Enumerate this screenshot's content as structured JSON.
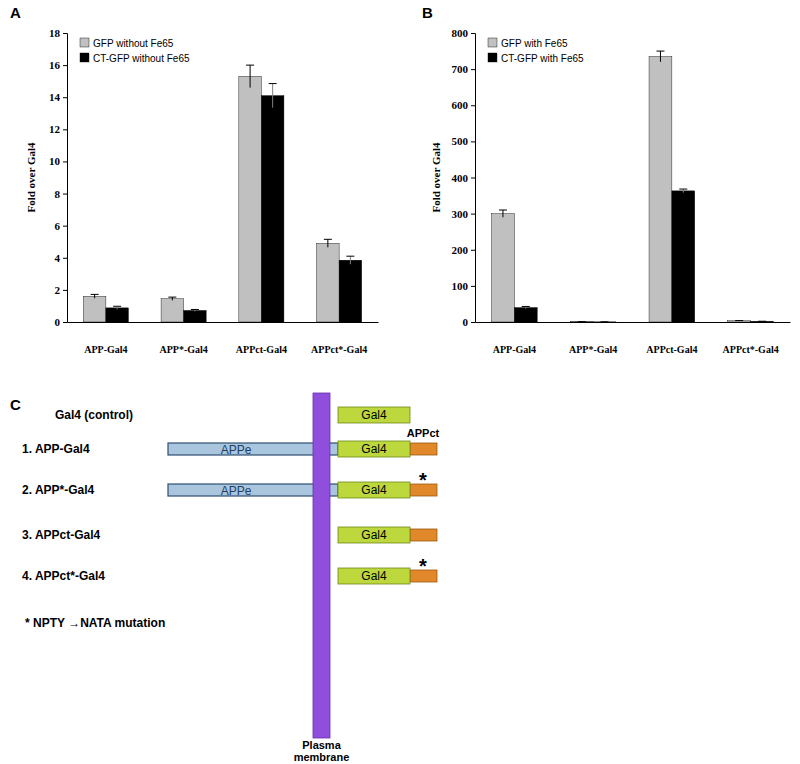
{
  "chart_data": [
    {
      "type": "bar",
      "title": "A",
      "categories": [
        "APP-Gal4",
        "APP*-Gal4",
        "APPct-Gal4",
        "APPct*-Gal4"
      ],
      "series": [
        {
          "name": "GFP without Fe65",
          "color": "#c0c0c0",
          "values": [
            1.6,
            1.45,
            15.3,
            4.9
          ],
          "errors": [
            0.12,
            0.1,
            0.7,
            0.25
          ]
        },
        {
          "name": "CT-GFP without Fe65",
          "color": "#000000",
          "values": [
            0.88,
            0.72,
            14.1,
            3.85
          ],
          "errors": [
            0.1,
            0.06,
            0.75,
            0.25
          ]
        }
      ],
      "y_label": "Fold over Gal4",
      "ylim": [
        0,
        18
      ],
      "yticks": [
        0,
        2,
        4,
        6,
        8,
        10,
        12,
        14,
        16,
        18
      ],
      "grid": false,
      "legend": "top-left"
    },
    {
      "type": "bar",
      "title": "B",
      "categories": [
        "APP-Gal4",
        "APP*-Gal4",
        "APPct-Gal4",
        "APPct*-Gal4"
      ],
      "series": [
        {
          "name": "GFP with Fe65",
          "color": "#c0c0c0",
          "values": [
            300,
            0.8,
            735,
            3.5
          ],
          "errors": [
            10,
            0.3,
            15,
            0.5
          ]
        },
        {
          "name": "CT-GFP with Fe65",
          "color": "#000000",
          "values": [
            40,
            0.4,
            363,
            1.8
          ],
          "errors": [
            3,
            0.2,
            5,
            0.3
          ]
        }
      ],
      "y_label": "Fold over Gal4",
      "ylim": [
        0,
        800
      ],
      "yticks": [
        0,
        100,
        200,
        300,
        400,
        500,
        600,
        700,
        800
      ],
      "grid": false,
      "legend": "top-left"
    }
  ],
  "diagram": {
    "title": "C",
    "rows": [
      {
        "label": "Gal4 (control)",
        "gal4": "Gal4"
      },
      {
        "label": "1. APP-Gal4",
        "ectodomain": "APPe",
        "gal4": "Gal4",
        "tail": true
      },
      {
        "label": "2. APP*-Gal4",
        "ectodomain": "APPe",
        "gal4": "Gal4",
        "tail": true,
        "mutation": "*"
      },
      {
        "label": "3. APPct-Gal4",
        "gal4": "Gal4",
        "tail": true
      },
      {
        "label": "4. APPct*-Gal4",
        "gal4": "Gal4",
        "tail": true,
        "mutation": "*"
      }
    ],
    "tail_label": "APPct",
    "footnote": "* NPTY →NATA mutation",
    "membrane_label": [
      "Plasma",
      "membrane"
    ]
  }
}
